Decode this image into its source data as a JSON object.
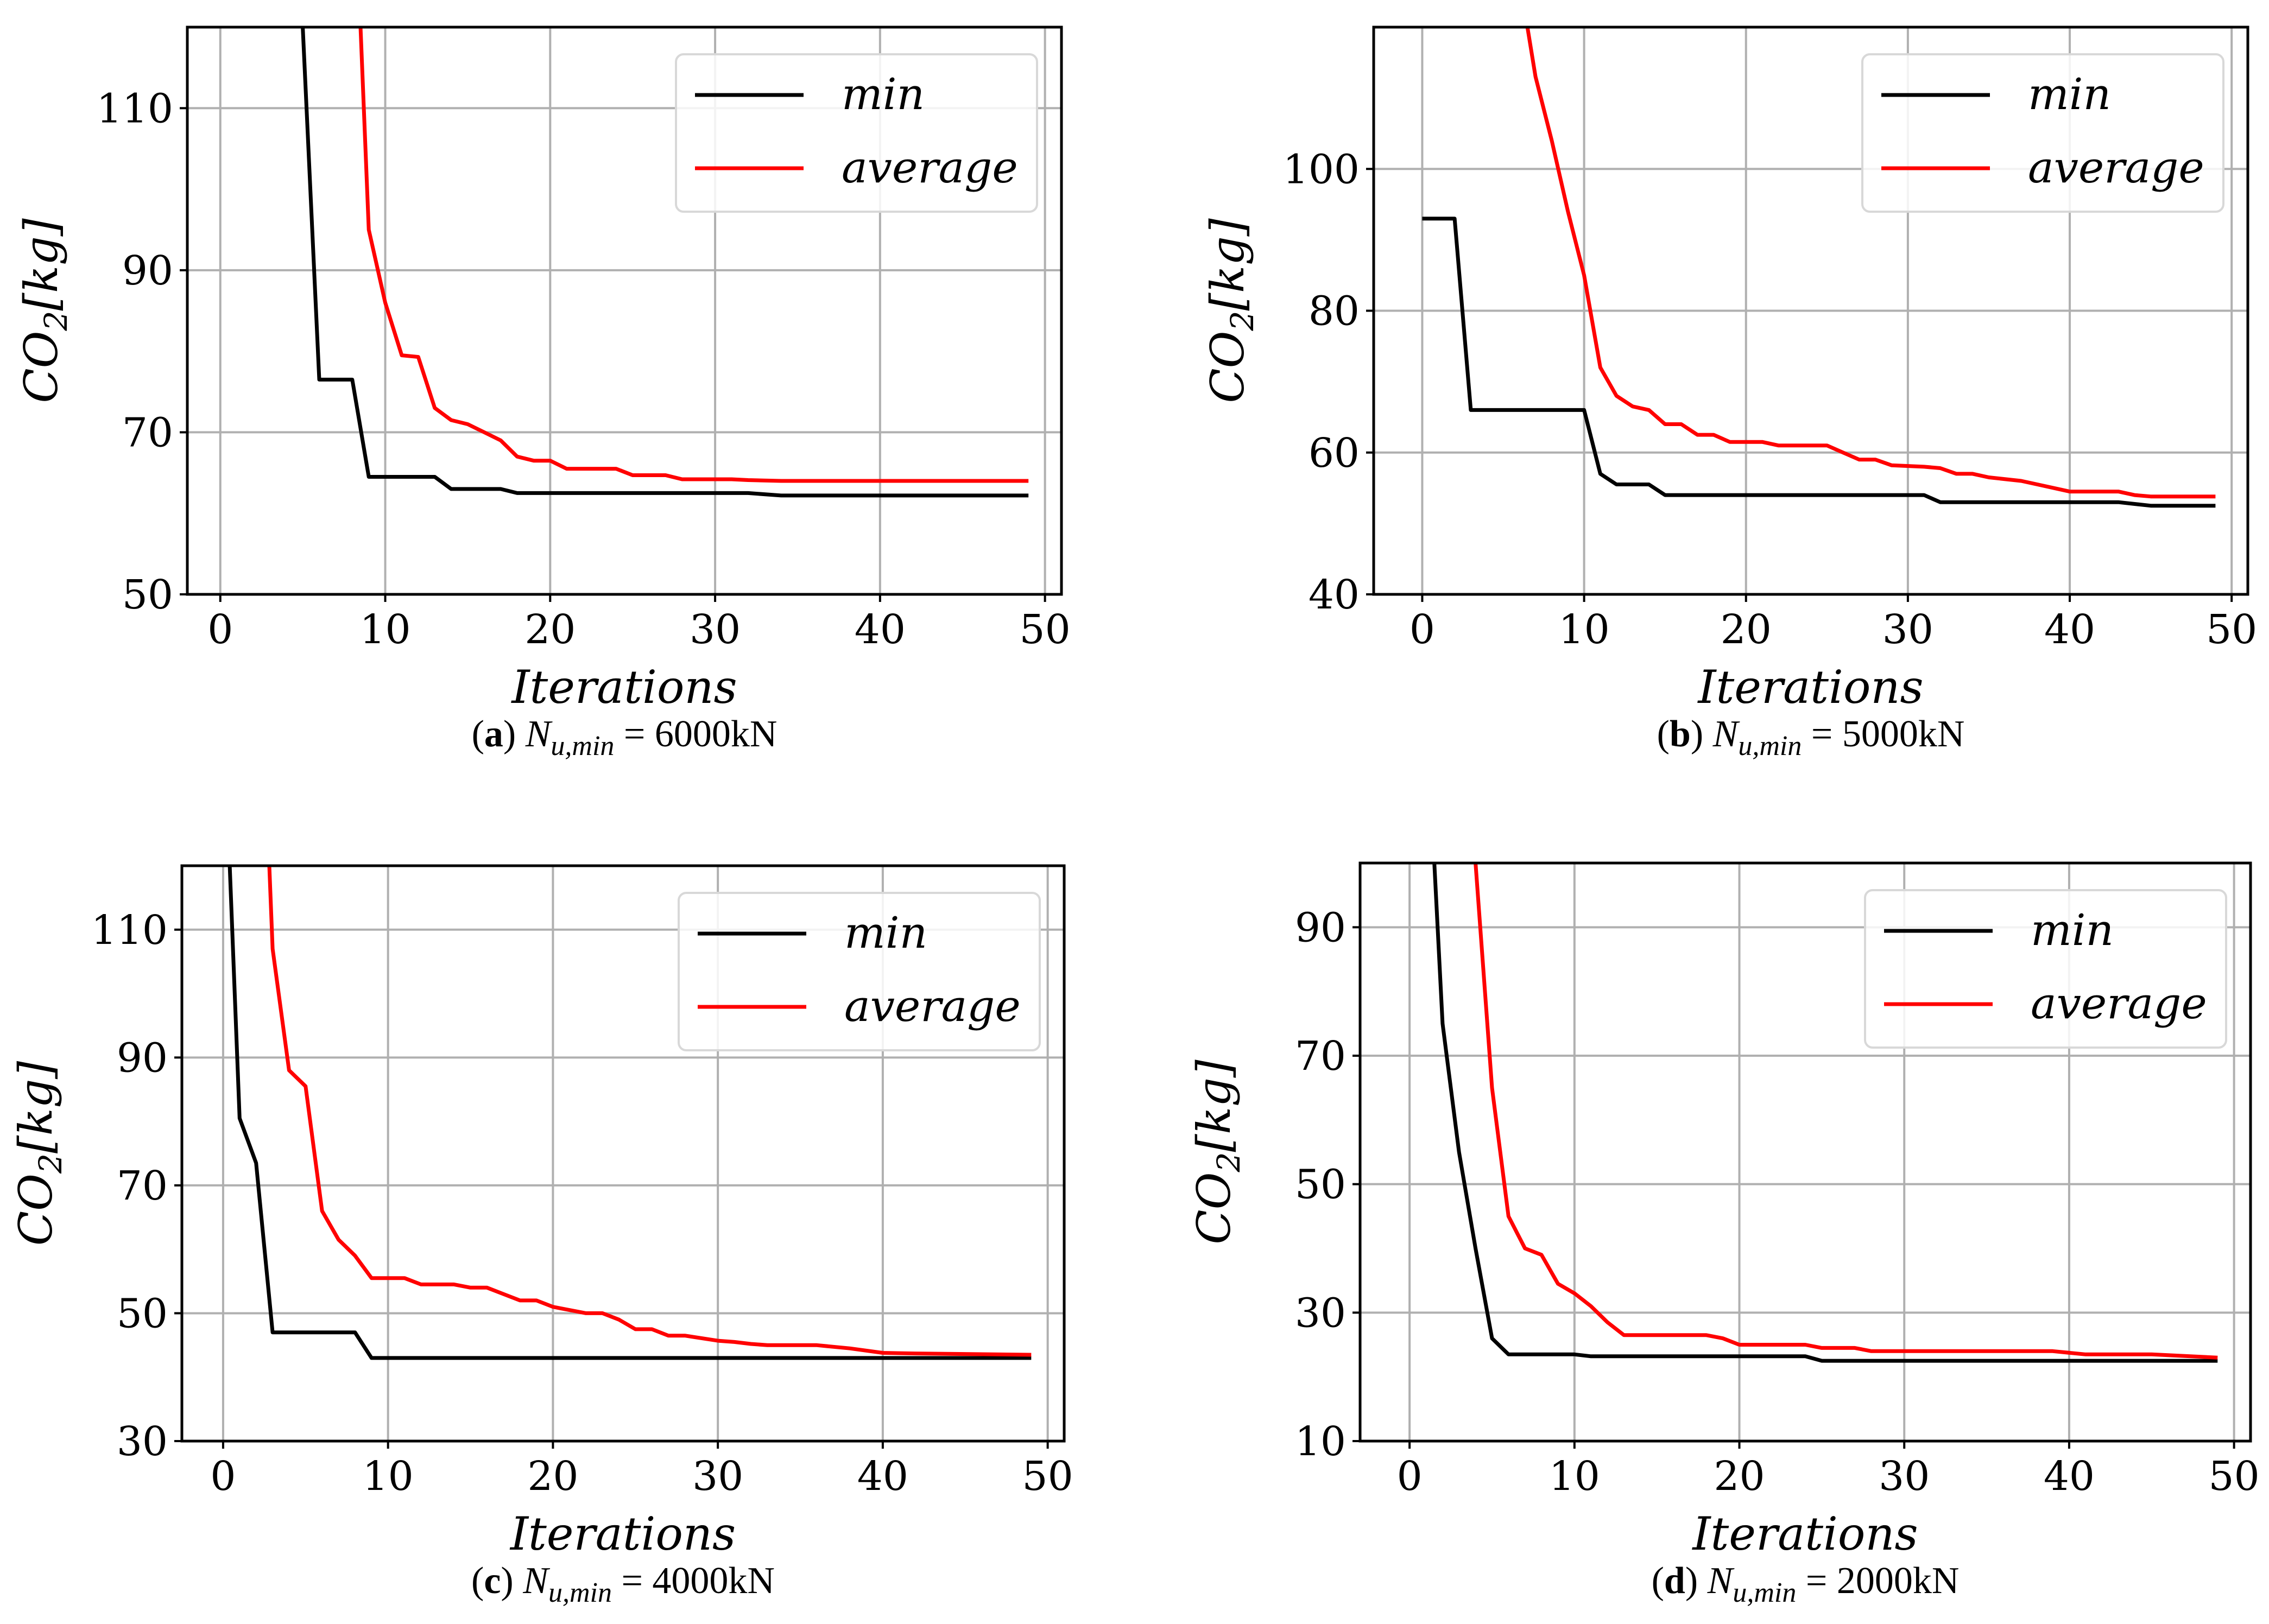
{
  "chart_data": [
    {
      "type": "line",
      "caption": {
        "letter": "a",
        "prefix": "N",
        "subscript": "u,min",
        "suffix": " = 6000kN"
      },
      "xlabel": "Iterations",
      "ylabel": "CO",
      "ylabel_sub": "2",
      "ylabel_unit": "[kg]",
      "xlim": [
        -2,
        51
      ],
      "ylim": [
        50,
        120
      ],
      "xticks": [
        "0",
        "10",
        "20",
        "30",
        "40",
        "50"
      ],
      "yticks": [
        "50",
        "70",
        "90",
        "110"
      ],
      "grid": true,
      "legend": "top-right",
      "series": [
        {
          "name": "min",
          "color": "#000000",
          "points": [
            [
              5,
              120
            ],
            [
              6,
              76.5
            ],
            [
              8,
              76.5
            ],
            [
              9,
              64.5
            ],
            [
              13,
              64.5
            ],
            [
              14,
              63
            ],
            [
              17,
              63
            ],
            [
              18,
              62.5
            ],
            [
              32,
              62.5
            ],
            [
              34,
              62.2
            ],
            [
              49,
              62.2
            ]
          ]
        },
        {
          "name": "average",
          "color": "#ff0000",
          "points": [
            [
              8.5,
              120
            ],
            [
              9,
              95
            ],
            [
              10,
              86
            ],
            [
              11,
              79.5
            ],
            [
              12,
              79.3
            ],
            [
              13,
              73
            ],
            [
              14,
              71.5
            ],
            [
              15,
              71
            ],
            [
              16,
              70
            ],
            [
              17,
              69
            ],
            [
              18,
              67
            ],
            [
              19,
              66.5
            ],
            [
              20,
              66.5
            ],
            [
              21,
              65.5
            ],
            [
              24,
              65.5
            ],
            [
              25,
              64.7
            ],
            [
              27,
              64.7
            ],
            [
              28,
              64.2
            ],
            [
              31,
              64.2
            ],
            [
              32,
              64.1
            ],
            [
              34,
              64
            ],
            [
              49,
              64
            ]
          ]
        }
      ]
    },
    {
      "type": "line",
      "caption": {
        "letter": "b",
        "prefix": "N",
        "subscript": "u,min",
        "suffix": " = 5000kN"
      },
      "xlabel": "Iterations",
      "ylabel": "CO",
      "ylabel_sub": "2",
      "ylabel_unit": "[kg]",
      "xlim": [
        -3,
        51
      ],
      "ylim": [
        40,
        120
      ],
      "xticks": [
        "0",
        "10",
        "20",
        "30",
        "40",
        "50"
      ],
      "yticks": [
        "40",
        "60",
        "80",
        "100"
      ],
      "grid": true,
      "legend": "top-right",
      "series": [
        {
          "name": "min",
          "color": "#000000",
          "points": [
            [
              0,
              93
            ],
            [
              2,
              93
            ],
            [
              3,
              66
            ],
            [
              10,
              66
            ],
            [
              11,
              57
            ],
            [
              12,
              55.5
            ],
            [
              14,
              55.5
            ],
            [
              15,
              54
            ],
            [
              31,
              54
            ],
            [
              32,
              53
            ],
            [
              43,
              53
            ],
            [
              45,
              52.5
            ],
            [
              49,
              52.5
            ]
          ]
        },
        {
          "name": "average",
          "color": "#ff0000",
          "points": [
            [
              6.5,
              120
            ],
            [
              7,
              113
            ],
            [
              8,
              104
            ],
            [
              9,
              94
            ],
            [
              10,
              85
            ],
            [
              11,
              72
            ],
            [
              12,
              68
            ],
            [
              13,
              66.5
            ],
            [
              14,
              66
            ],
            [
              15,
              64
            ],
            [
              16,
              64
            ],
            [
              17,
              62.5
            ],
            [
              18,
              62.5
            ],
            [
              19,
              61.5
            ],
            [
              21,
              61.5
            ],
            [
              22,
              61
            ],
            [
              25,
              61
            ],
            [
              26,
              60
            ],
            [
              27,
              59
            ],
            [
              28,
              59
            ],
            [
              29,
              58.2
            ],
            [
              31,
              58
            ],
            [
              32,
              57.8
            ],
            [
              33,
              57
            ],
            [
              34,
              57
            ],
            [
              35,
              56.5
            ],
            [
              37,
              56
            ],
            [
              38,
              55.5
            ],
            [
              40,
              54.5
            ],
            [
              43,
              54.5
            ],
            [
              44,
              54
            ],
            [
              45,
              53.8
            ],
            [
              49,
              53.8
            ]
          ]
        }
      ]
    },
    {
      "type": "line",
      "caption": {
        "letter": "c",
        "prefix": "N",
        "subscript": "u,min",
        "suffix": " = 4000kN"
      },
      "xlabel": "Iterations",
      "ylabel": "CO",
      "ylabel_sub": "2",
      "ylabel_unit": "[kg]",
      "xlim": [
        -2.5,
        51
      ],
      "ylim": [
        30,
        120
      ],
      "xticks": [
        "0",
        "10",
        "20",
        "30",
        "40",
        "50"
      ],
      "yticks": [
        "30",
        "50",
        "70",
        "90",
        "110"
      ],
      "grid": true,
      "legend": "top-right",
      "series": [
        {
          "name": "min",
          "color": "#000000",
          "points": [
            [
              0.4,
              120
            ],
            [
              1,
              80.5
            ],
            [
              2,
              73.5
            ],
            [
              3,
              47
            ],
            [
              8,
              47
            ],
            [
              9,
              43
            ],
            [
              49,
              43
            ]
          ]
        },
        {
          "name": "average",
          "color": "#ff0000",
          "points": [
            [
              2.8,
              120
            ],
            [
              3,
              107
            ],
            [
              4,
              88
            ],
            [
              5,
              85.5
            ],
            [
              6,
              66
            ],
            [
              7,
              61.5
            ],
            [
              8,
              59
            ],
            [
              9,
              55.5
            ],
            [
              11,
              55.5
            ],
            [
              12,
              54.5
            ],
            [
              14,
              54.5
            ],
            [
              15,
              54
            ],
            [
              16,
              54
            ],
            [
              17,
              53
            ],
            [
              18,
              52
            ],
            [
              19,
              52
            ],
            [
              20,
              51
            ],
            [
              21,
              50.5
            ],
            [
              22,
              50
            ],
            [
              23,
              50
            ],
            [
              24,
              49
            ],
            [
              25,
              47.5
            ],
            [
              26,
              47.5
            ],
            [
              27,
              46.5
            ],
            [
              28,
              46.5
            ],
            [
              30,
              45.7
            ],
            [
              31,
              45.5
            ],
            [
              32,
              45.2
            ],
            [
              33,
              45
            ],
            [
              36,
              45
            ],
            [
              38,
              44.5
            ],
            [
              40,
              43.8
            ],
            [
              42,
              43.7
            ],
            [
              49,
              43.5
            ]
          ]
        }
      ]
    },
    {
      "type": "line",
      "caption": {
        "letter": "d",
        "prefix": "N",
        "subscript": "u,min",
        "suffix": " = 2000kN"
      },
      "xlabel": "Iterations",
      "ylabel": "CO",
      "ylabel_sub": "2",
      "ylabel_unit": "[kg]",
      "xlim": [
        -3,
        51
      ],
      "ylim": [
        10,
        100
      ],
      "xticks": [
        "0",
        "10",
        "20",
        "30",
        "40",
        "50"
      ],
      "yticks": [
        "10",
        "30",
        "50",
        "70",
        "90"
      ],
      "grid": true,
      "legend": "top-right",
      "series": [
        {
          "name": "min",
          "color": "#000000",
          "points": [
            [
              1.5,
              100
            ],
            [
              2,
              75
            ],
            [
              3,
              55
            ],
            [
              4,
              40
            ],
            [
              5,
              26
            ],
            [
              6,
              23.5
            ],
            [
              10,
              23.5
            ],
            [
              11,
              23.2
            ],
            [
              24,
              23.2
            ],
            [
              25,
              22.5
            ],
            [
              49,
              22.5
            ]
          ]
        },
        {
          "name": "average",
          "color": "#ff0000",
          "points": [
            [
              4,
              100
            ],
            [
              5,
              65
            ],
            [
              6,
              45
            ],
            [
              7,
              40
            ],
            [
              8,
              39
            ],
            [
              9,
              34.5
            ],
            [
              10,
              33
            ],
            [
              11,
              31
            ],
            [
              12,
              28.5
            ],
            [
              13,
              26.5
            ],
            [
              18,
              26.5
            ],
            [
              19,
              26
            ],
            [
              20,
              25
            ],
            [
              24,
              25
            ],
            [
              25,
              24.5
            ],
            [
              27,
              24.5
            ],
            [
              28,
              24
            ],
            [
              39,
              24
            ],
            [
              41,
              23.5
            ],
            [
              45,
              23.5
            ],
            [
              49,
              23
            ]
          ]
        }
      ]
    }
  ]
}
